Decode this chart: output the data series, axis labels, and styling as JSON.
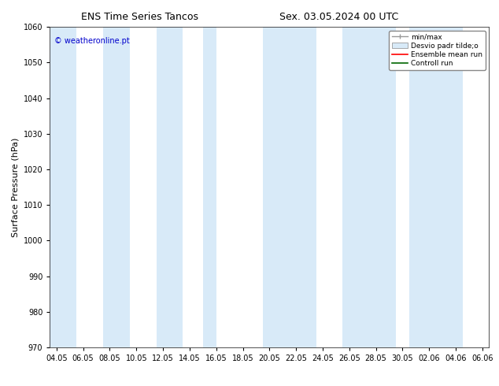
{
  "title_left": "ENS Time Series Tancos",
  "title_right": "Sex. 03.05.2024 00 UTC",
  "ylabel": "Surface Pressure (hPa)",
  "ylim": [
    970,
    1060
  ],
  "yticks": [
    970,
    980,
    990,
    1000,
    1010,
    1020,
    1030,
    1040,
    1050,
    1060
  ],
  "watermark": "© weatheronline.pt",
  "watermark_color": "#0000cc",
  "bg_color": "#ffffff",
  "plot_bg_color": "#ffffff",
  "band_color": "#d8eaf8",
  "x_tick_labels": [
    "04.05",
    "06.05",
    "08.05",
    "10.05",
    "12.05",
    "14.05",
    "16.05",
    "18.05",
    "20.05",
    "22.05",
    "24.05",
    "26.05",
    "28.05",
    "30.05",
    "02.06",
    "04.06",
    "06.06"
  ],
  "x_values": [
    0,
    2,
    4,
    6,
    8,
    10,
    12,
    14,
    16,
    18,
    20,
    22,
    24,
    26,
    28,
    30,
    32
  ],
  "shade_centers": [
    0.5,
    4.5,
    8.5,
    11.5,
    16.5,
    18.5,
    22.5,
    24.5,
    28.5
  ],
  "shade_widths": [
    2.0,
    2.0,
    2.0,
    1.0,
    2.0,
    2.0,
    2.0,
    2.0,
    4.0
  ],
  "legend_labels": [
    "min/max",
    "Desvio padr tilde;o",
    "Ensemble mean run",
    "Controll run"
  ],
  "legend_colors": [
    "#999999",
    "#d8eaf8",
    "#ff0000",
    "#006600"
  ],
  "title_fontsize": 9,
  "tick_fontsize": 7,
  "label_fontsize": 8,
  "watermark_fontsize": 7
}
